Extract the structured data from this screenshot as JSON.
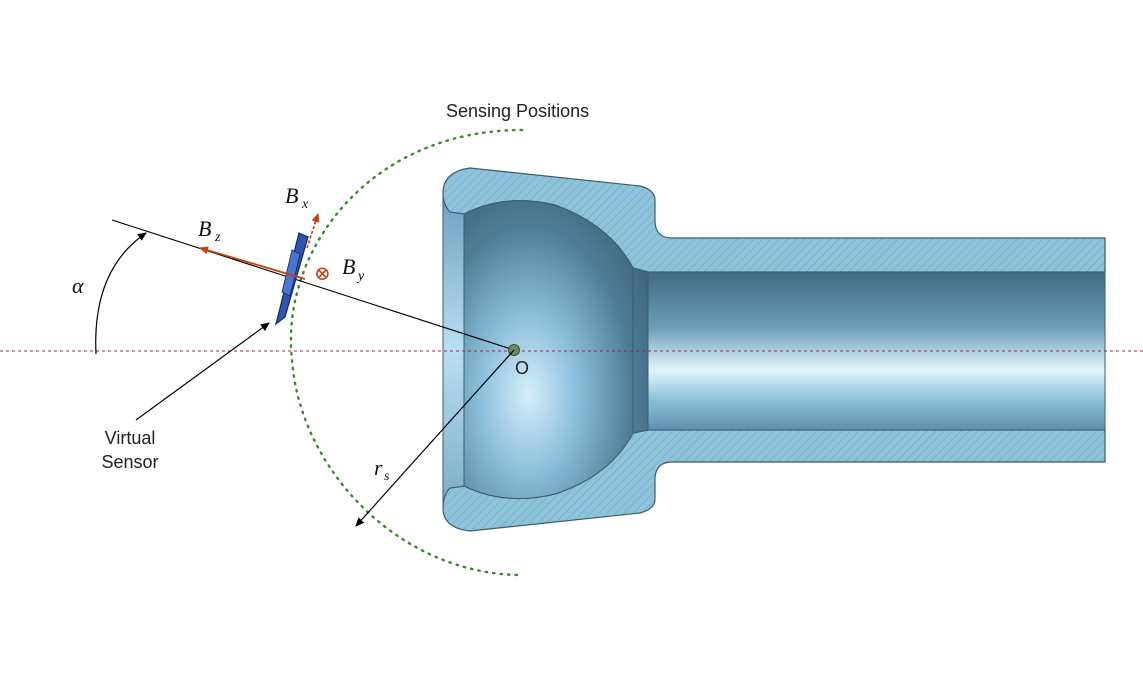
{
  "labels": {
    "sensing_positions": "Sensing Positions",
    "virtual_sensor_line1": "Virtual",
    "virtual_sensor_line2": "Sensor",
    "origin": "O",
    "alpha": "α",
    "bx_main": "B",
    "bx_sub": "x",
    "by_main": "B",
    "by_sub": "y",
    "bz_main": "B",
    "bz_sub": "z",
    "rs_main": "r",
    "rs_sub": "s",
    "otimes": "⊗"
  },
  "colors": {
    "sensing_arc": "#3a8a2a",
    "axis_line": "#a0205a",
    "vector": "#c04010",
    "sensor_body": "#2f55b0",
    "tube_section": "#8fc3dc",
    "tube_inner": "#5f8fb0",
    "origin_dot": "#6f8a5a"
  }
}
